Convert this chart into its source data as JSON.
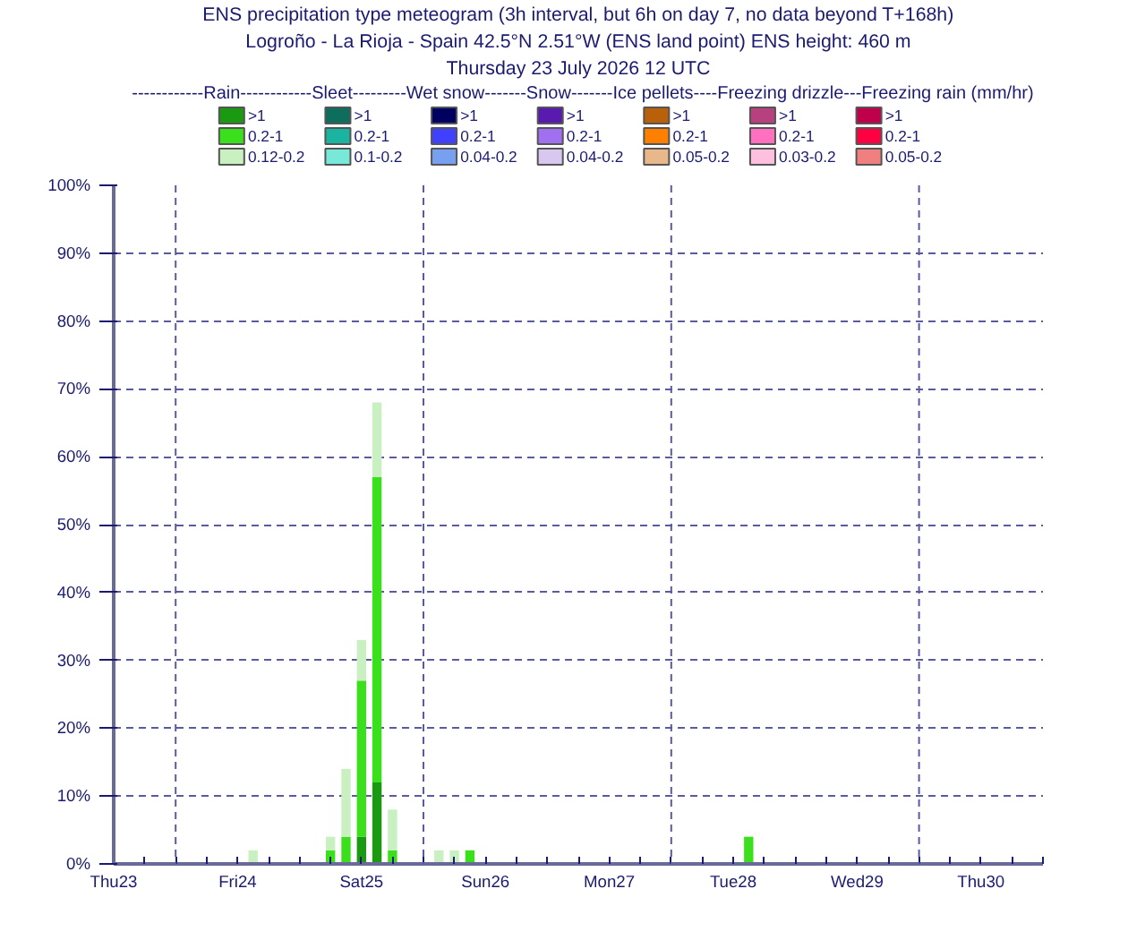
{
  "chart_data": {
    "type": "bar",
    "stacked": true,
    "title": "ENS precipitation type meteogram (3h interval, but 6h on day 7, no data beyond T+168h)",
    "subtitle": "Logroño - La Rioja - Spain 42.5°N 2.51°W (ENS land point) ENS height: 460 m\nThursday 23 July 2026 12 UTC",
    "legend_title": "------------Rain------------Sleet---------Wet snow-------Snow-------Ice pellets----Freezing drizzle---Freezing rain (mm/hr)",
    "legend": "top",
    "grid": "y",
    "x": [
      "2026-07-24T15:00",
      "2026-07-25T06:00",
      "2026-07-25T09:00",
      "2026-07-25T12:00",
      "2026-07-25T15:00",
      "2026-07-25T18:00",
      "2026-07-26T03:00",
      "2026-07-26T06:00",
      "2026-07-26T09:00",
      "2026-07-28T15:00"
    ],
    "xlim": [
      "2026-07-23T12:00",
      "2026-07-31T00:00"
    ],
    "xticks": [
      {
        "value": "2026-07-23T12:00",
        "label": "Thu23"
      },
      {
        "value": "2026-07-23T18:00",
        "label": null
      },
      {
        "value": "2026-07-24T00:00",
        "label": null
      },
      {
        "value": "2026-07-24T06:00",
        "label": null
      },
      {
        "value": "2026-07-24T12:00",
        "label": "Fri24"
      },
      {
        "value": "2026-07-24T18:00",
        "label": null
      },
      {
        "value": "2026-07-25T00:00",
        "label": null
      },
      {
        "value": "2026-07-25T06:00",
        "label": null
      },
      {
        "value": "2026-07-25T12:00",
        "label": "Sat25"
      },
      {
        "value": "2026-07-25T18:00",
        "label": null
      },
      {
        "value": "2026-07-26T00:00",
        "label": null
      },
      {
        "value": "2026-07-26T06:00",
        "label": null
      },
      {
        "value": "2026-07-26T12:00",
        "label": "Sun26"
      },
      {
        "value": "2026-07-26T18:00",
        "label": null
      },
      {
        "value": "2026-07-27T00:00",
        "label": null
      },
      {
        "value": "2026-07-27T06:00",
        "label": null
      },
      {
        "value": "2026-07-27T12:00",
        "label": "Mon27"
      },
      {
        "value": "2026-07-27T18:00",
        "label": null
      },
      {
        "value": "2026-07-28T00:00",
        "label": null
      },
      {
        "value": "2026-07-28T06:00",
        "label": null
      },
      {
        "value": "2026-07-28T12:00",
        "label": "Tue28"
      },
      {
        "value": "2026-07-28T18:00",
        "label": null
      },
      {
        "value": "2026-07-29T00:00",
        "label": null
      },
      {
        "value": "2026-07-29T06:00",
        "label": null
      },
      {
        "value": "2026-07-29T12:00",
        "label": "Wed29"
      },
      {
        "value": "2026-07-29T18:00",
        "label": null
      },
      {
        "value": "2026-07-30T00:00",
        "label": null
      },
      {
        "value": "2026-07-30T06:00",
        "label": null
      },
      {
        "value": "2026-07-30T12:00",
        "label": "Thu30"
      },
      {
        "value": "2026-07-30T18:00",
        "label": null
      },
      {
        "value": "2026-07-31T00:00",
        "label": null
      }
    ],
    "ylim": [
      0,
      100
    ],
    "yticks": [
      {
        "value": 0,
        "label": "0%"
      },
      {
        "value": 10,
        "label": "10%"
      },
      {
        "value": 20,
        "label": "20%"
      },
      {
        "value": 30,
        "label": "30%"
      },
      {
        "value": 40,
        "label": "40%"
      },
      {
        "value": 50,
        "label": "50%"
      },
      {
        "value": 60,
        "label": "60%"
      },
      {
        "value": 70,
        "label": "70%"
      },
      {
        "value": 80,
        "label": "80%"
      },
      {
        "value": 90,
        "label": "90%"
      },
      {
        "value": 100,
        "label": "100%"
      }
    ],
    "ref_lines": [
      {
        "axis": "x",
        "value": "2026-07-24T00:00",
        "label": null,
        "color": "#5a5aa0",
        "line_style": "dashed"
      },
      {
        "axis": "x",
        "value": "2026-07-26T00:00",
        "label": null,
        "color": "#5a5aa0",
        "line_style": "dashed"
      },
      {
        "axis": "x",
        "value": "2026-07-28T00:00",
        "label": null,
        "color": "#5a5aa0",
        "line_style": "dashed"
      },
      {
        "axis": "x",
        "value": "2026-07-30T00:00",
        "label": null,
        "color": "#5a5aa0",
        "line_style": "dashed"
      }
    ],
    "series": [
      {
        "name": ">1",
        "color": "#1a9a10",
        "values": [
          0,
          0,
          0,
          4,
          12,
          0,
          0,
          0,
          0,
          0
        ]
      },
      {
        "name": "0.2-1",
        "color": "#3be01c",
        "values": [
          0,
          2,
          4,
          23,
          45,
          2,
          0,
          0,
          2,
          4
        ]
      },
      {
        "name": "0.12-0.2",
        "color": "#c8f0c0",
        "values": [
          2,
          2,
          10,
          6,
          11,
          6,
          2,
          2,
          0,
          0
        ]
      },
      {
        "name": ">1",
        "color": "#0e6e5e",
        "values": [
          null,
          null,
          null,
          null,
          null,
          null,
          null,
          null,
          null,
          null
        ]
      },
      {
        "name": "0.2-1",
        "color": "#1ab4a0",
        "values": [
          null,
          null,
          null,
          null,
          null,
          null,
          null,
          null,
          null,
          null
        ]
      },
      {
        "name": "0.1-0.2",
        "color": "#78e8d8",
        "values": [
          null,
          null,
          null,
          null,
          null,
          null,
          null,
          null,
          null,
          null
        ]
      },
      {
        "name": ">1",
        "color": "#000060",
        "values": [
          null,
          null,
          null,
          null,
          null,
          null,
          null,
          null,
          null,
          null
        ]
      },
      {
        "name": "0.2-1",
        "color": "#4040ff",
        "values": [
          null,
          null,
          null,
          null,
          null,
          null,
          null,
          null,
          null,
          null
        ]
      },
      {
        "name": "0.04-0.2",
        "color": "#78a0f0",
        "values": [
          null,
          null,
          null,
          null,
          null,
          null,
          null,
          null,
          null,
          null
        ]
      },
      {
        "name": ">1",
        "color": "#5a1ab0",
        "values": [
          null,
          null,
          null,
          null,
          null,
          null,
          null,
          null,
          null,
          null
        ]
      },
      {
        "name": "0.2-1",
        "color": "#a070f0",
        "values": [
          null,
          null,
          null,
          null,
          null,
          null,
          null,
          null,
          null,
          null
        ]
      },
      {
        "name": "0.04-0.2",
        "color": "#d8c8f0",
        "values": [
          null,
          null,
          null,
          null,
          null,
          null,
          null,
          null,
          null,
          null
        ]
      },
      {
        "name": ">1",
        "color": "#b8600a",
        "values": [
          null,
          null,
          null,
          null,
          null,
          null,
          null,
          null,
          null,
          null
        ]
      },
      {
        "name": "0.2-1",
        "color": "#ff8000",
        "values": [
          null,
          null,
          null,
          null,
          null,
          null,
          null,
          null,
          null,
          null
        ]
      },
      {
        "name": "0.05-0.2",
        "color": "#e8b88a",
        "values": [
          null,
          null,
          null,
          null,
          null,
          null,
          null,
          null,
          null,
          null
        ]
      },
      {
        "name": ">1",
        "color": "#b84080",
        "values": [
          null,
          null,
          null,
          null,
          null,
          null,
          null,
          null,
          null,
          null
        ]
      },
      {
        "name": "0.2-1",
        "color": "#ff70c0",
        "values": [
          null,
          null,
          null,
          null,
          null,
          null,
          null,
          null,
          null,
          null
        ]
      },
      {
        "name": "0.03-0.2",
        "color": "#ffc0e0",
        "values": [
          null,
          null,
          null,
          null,
          null,
          null,
          null,
          null,
          null,
          null
        ]
      },
      {
        "name": ">1",
        "color": "#c0004a",
        "values": [
          null,
          null,
          null,
          null,
          null,
          null,
          null,
          null,
          null,
          null
        ]
      },
      {
        "name": "0.2-1",
        "color": "#ff0040",
        "values": [
          null,
          null,
          null,
          null,
          null,
          null,
          null,
          null,
          null,
          null
        ]
      },
      {
        "name": "0.05-0.2",
        "color": "#f08080",
        "values": [
          null,
          null,
          null,
          null,
          null,
          null,
          null,
          null,
          null,
          null
        ]
      }
    ]
  }
}
